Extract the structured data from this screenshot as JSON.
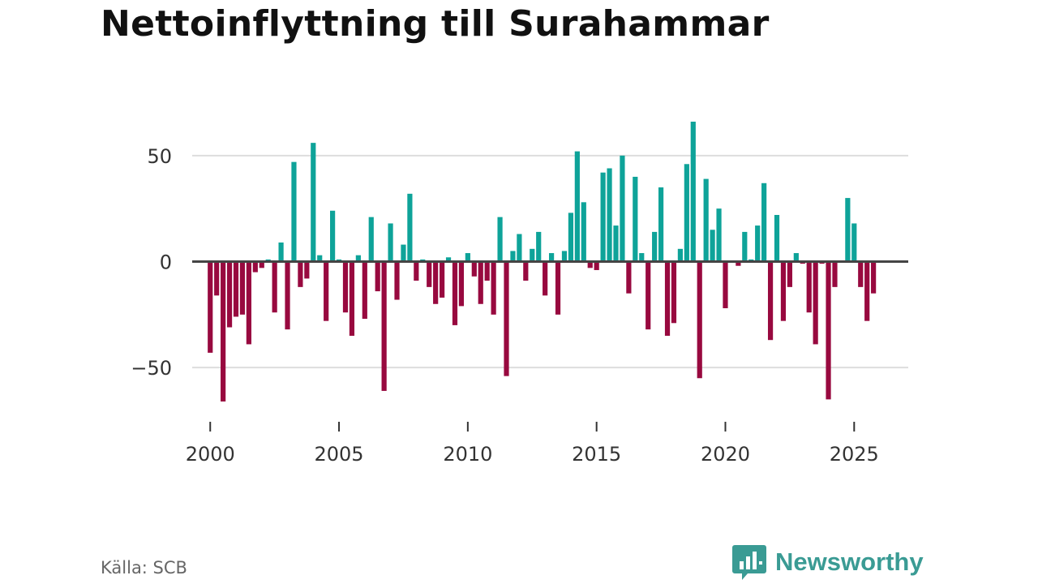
{
  "chart_data": {
    "type": "bar",
    "title": "Nettoinflyttning till Surahammar",
    "source": "Källa: SCB",
    "brand": "Newsworthy",
    "xlabel": "",
    "ylabel": "",
    "ylim": [
      -66,
      66
    ],
    "xlim": [
      1999.3,
      2027.1
    ],
    "y_ticks": [
      50,
      0,
      -50
    ],
    "y_tick_labels": [
      "50",
      "0",
      "−50"
    ],
    "x_ticks": [
      2000,
      2005,
      2010,
      2015,
      2020,
      2025
    ],
    "x_tick_labels": [
      "2000",
      "2005",
      "2010",
      "2015",
      "2020",
      "2025"
    ],
    "colors": {
      "positive": "#0ea399",
      "negative": "#98093f",
      "zero_line": "#444444",
      "grid": "#dddddd",
      "brand": "#3a9b94"
    },
    "start_year": 2000,
    "start_quarter": 1,
    "values": [
      -43,
      -16,
      -66,
      -31,
      -26,
      -25,
      -39,
      -5,
      -3,
      1,
      -24,
      9,
      -32,
      47,
      -12,
      -8,
      56,
      3,
      -28,
      24,
      1,
      -24,
      -35,
      3,
      -27,
      21,
      -14,
      -61,
      18,
      -18,
      8,
      32,
      -9,
      1,
      -12,
      -20,
      -17,
      2,
      -30,
      -21,
      4,
      -7,
      -20,
      -9,
      -25,
      21,
      -54,
      5,
      13,
      -9,
      6,
      14,
      -16,
      4,
      -25,
      5,
      23,
      52,
      28,
      -3,
      -4,
      42,
      44,
      17,
      50,
      -15,
      40,
      4,
      -32,
      14,
      35,
      -35,
      -29,
      6,
      46,
      66,
      -55,
      39,
      15,
      25,
      -22,
      0,
      -2,
      14,
      1,
      17,
      37,
      -37,
      22,
      -28,
      -12,
      4,
      -1,
      -24,
      -39,
      -1,
      -65,
      -12,
      0,
      30,
      18,
      -12,
      -28,
      -15
    ]
  }
}
